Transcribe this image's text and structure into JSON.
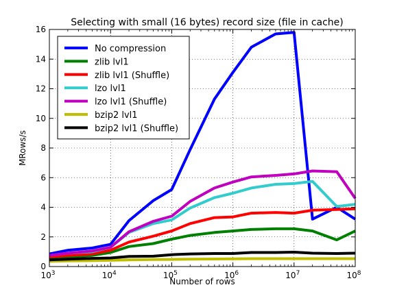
{
  "chart_data": {
    "type": "line",
    "title": "Selecting with small (16 bytes) record size (file in cache)",
    "xlabel": "Number of rows",
    "ylabel": "MRows/s",
    "xscale": "log",
    "xlim": [
      1000,
      100000000
    ],
    "ylim": [
      0,
      16
    ],
    "x_tick_labels": [
      {
        "base": "10",
        "exp": "3"
      },
      {
        "base": "10",
        "exp": "4"
      },
      {
        "base": "10",
        "exp": "5"
      },
      {
        "base": "10",
        "exp": "6"
      },
      {
        "base": "10",
        "exp": "7"
      },
      {
        "base": "10",
        "exp": "8"
      }
    ],
    "y_ticks": [
      "0",
      "2",
      "4",
      "6",
      "8",
      "10",
      "12",
      "14",
      "16"
    ],
    "grid": true,
    "legend_position": "top-left",
    "x": [
      1000,
      2000,
      5000,
      10000,
      20000,
      50000,
      100000,
      200000,
      500000,
      1000000,
      2000000,
      5000000,
      10000000,
      20000000,
      50000000,
      100000000
    ],
    "series": [
      {
        "name": "No compression",
        "color": "#0000ff",
        "values": [
          0.85,
          1.1,
          1.25,
          1.5,
          3.1,
          4.45,
          5.2,
          7.9,
          11.3,
          13.1,
          14.8,
          15.7,
          15.8,
          3.2,
          4.0,
          3.2
        ]
      },
      {
        "name": "zlib lvl1",
        "color": "#008000",
        "values": [
          0.55,
          0.65,
          0.75,
          0.95,
          1.35,
          1.55,
          1.85,
          2.1,
          2.3,
          2.4,
          2.5,
          2.55,
          2.55,
          2.4,
          1.8,
          2.4
        ]
      },
      {
        "name": "zlib lvl1 (Shuffle)",
        "color": "#ff0000",
        "values": [
          0.65,
          0.75,
          0.85,
          1.1,
          1.65,
          2.05,
          2.4,
          2.9,
          3.3,
          3.35,
          3.6,
          3.65,
          3.6,
          3.8,
          3.85,
          3.9
        ]
      },
      {
        "name": "lzo lvl1",
        "color": "#33cccc",
        "values": [
          0.75,
          0.9,
          1.0,
          1.3,
          2.3,
          2.9,
          3.15,
          3.95,
          4.65,
          4.95,
          5.3,
          5.55,
          5.6,
          5.75,
          4.05,
          4.2
        ]
      },
      {
        "name": "lzo lvl1 (Shuffle)",
        "color": "#bf00bf",
        "values": [
          0.75,
          0.9,
          1.05,
          1.3,
          2.35,
          3.05,
          3.4,
          4.4,
          5.3,
          5.7,
          6.05,
          6.15,
          6.25,
          6.45,
          6.4,
          4.6
        ]
      },
      {
        "name": "bzip2 lvl1",
        "color": "#bfbf00",
        "values": [
          0.35,
          0.38,
          0.4,
          0.42,
          0.45,
          0.47,
          0.48,
          0.5,
          0.51,
          0.52,
          0.53,
          0.53,
          0.53,
          0.53,
          0.53,
          0.53
        ]
      },
      {
        "name": "bzip2 lvl1 (Shuffle)",
        "color": "#000000",
        "values": [
          0.45,
          0.5,
          0.55,
          0.58,
          0.68,
          0.7,
          0.8,
          0.85,
          0.88,
          0.88,
          0.95,
          0.95,
          0.97,
          0.9,
          0.88,
          0.9
        ]
      }
    ]
  }
}
